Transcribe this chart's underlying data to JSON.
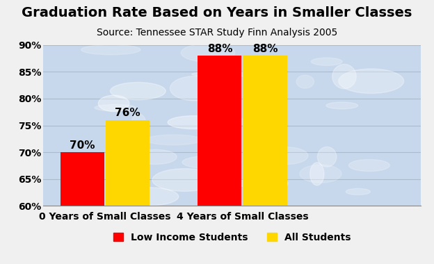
{
  "title": "Graduation Rate Based on Years in Smaller Classes",
  "subtitle": "Source: Tennessee STAR Study Finn Analysis 2005",
  "categories": [
    "0 Years of Small Classes",
    "4 Years of Small Classes"
  ],
  "series": [
    {
      "label": "Low Income Students",
      "color": "#FF0000",
      "values": [
        70,
        88
      ]
    },
    {
      "label": "All Students",
      "color": "#FFD700",
      "values": [
        76,
        88
      ]
    }
  ],
  "ylim": [
    60,
    90
  ],
  "yticks": [
    60,
    65,
    70,
    75,
    80,
    85,
    90
  ],
  "ytick_labels": [
    "60%",
    "65%",
    "70%",
    "75%",
    "80%",
    "85%",
    "90%"
  ],
  "figure_bg_color": "#F0F0F0",
  "plot_bg_color": "#C8D8EC",
  "bar_width": 0.32,
  "title_fontsize": 14,
  "subtitle_fontsize": 10,
  "xlabel_fontsize": 10,
  "tick_fontsize": 10,
  "legend_fontsize": 10,
  "bar_label_fontsize": 11
}
